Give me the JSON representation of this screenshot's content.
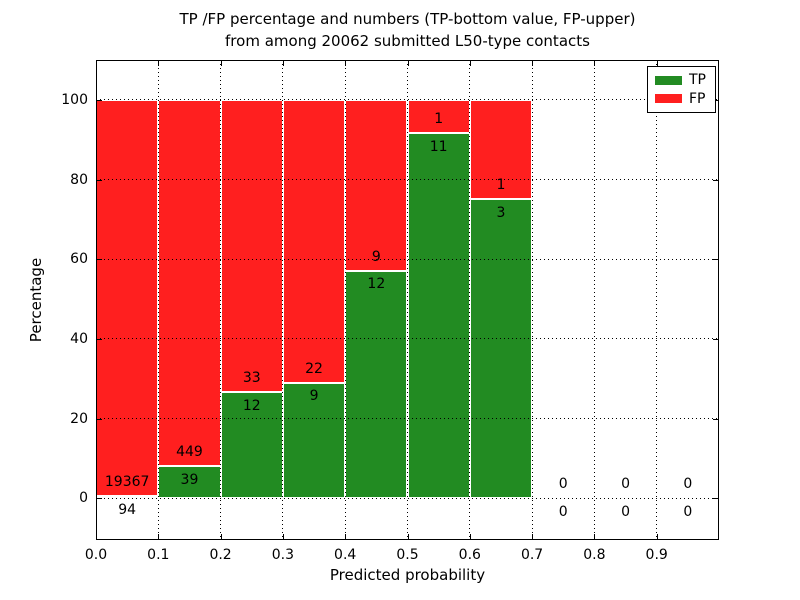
{
  "chart_data": {
    "type": "bar",
    "stacked": true,
    "title_line1": "TP /FP percentage and numbers (TP-bottom value, FP-upper)",
    "title_line2": "from among 20062 submitted L50-type contacts",
    "total_submitted": 20062,
    "xlabel": "Predicted probability",
    "ylabel": "Percentage",
    "bin_edges": [
      0.0,
      0.1,
      0.2,
      0.3,
      0.4,
      0.5,
      0.6,
      0.7,
      0.8,
      0.9,
      1.0
    ],
    "categories": [
      "0.0-0.1",
      "0.1-0.2",
      "0.2-0.3",
      "0.3-0.4",
      "0.4-0.5",
      "0.5-0.6",
      "0.6-0.7",
      "0.7-0.8",
      "0.8-0.9",
      "0.9-1.0"
    ],
    "series": [
      {
        "name": "TP",
        "color": "#228b22",
        "values": [
          94,
          39,
          12,
          9,
          12,
          11,
          3,
          0,
          0,
          0
        ]
      },
      {
        "name": "FP",
        "color": "#ff1f1f",
        "values": [
          19367,
          449,
          33,
          22,
          9,
          1,
          1,
          0,
          0,
          0
        ]
      }
    ],
    "tp_percentages": [
      0.48,
      7.99,
      26.67,
      29.03,
      57.14,
      91.67,
      75.0,
      0,
      0,
      0
    ],
    "bars_shown_as": "percentage stacked to 100, TP bottom (green), FP top (red)",
    "xlim": [
      0.0,
      1.0
    ],
    "ylim": [
      -10.5,
      110
    ],
    "xticks": [
      "0.0",
      "0.1",
      "0.2",
      "0.3",
      "0.4",
      "0.5",
      "0.6",
      "0.7",
      "0.8",
      "0.9"
    ],
    "yticks": [
      0,
      20,
      40,
      60,
      80,
      100
    ],
    "grid": "dotted black, drawn over bars",
    "bar_edge_color": "#ffffff",
    "legend_position": "upper right"
  }
}
